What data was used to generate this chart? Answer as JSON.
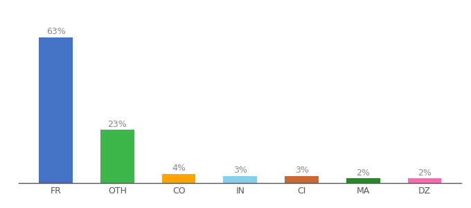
{
  "categories": [
    "FR",
    "OTH",
    "CO",
    "IN",
    "CI",
    "MA",
    "DZ"
  ],
  "values": [
    63,
    23,
    4,
    3,
    3,
    2,
    2
  ],
  "labels": [
    "63%",
    "23%",
    "4%",
    "3%",
    "3%",
    "2%",
    "2%"
  ],
  "bar_colors": [
    "#4472c4",
    "#3cb84a",
    "#ffa500",
    "#87ceeb",
    "#cc6633",
    "#228B22",
    "#ff69b4"
  ],
  "background_color": "#ffffff",
  "label_fontsize": 9,
  "tick_fontsize": 9,
  "bar_width": 0.55,
  "ylim": [
    0,
    72
  ]
}
